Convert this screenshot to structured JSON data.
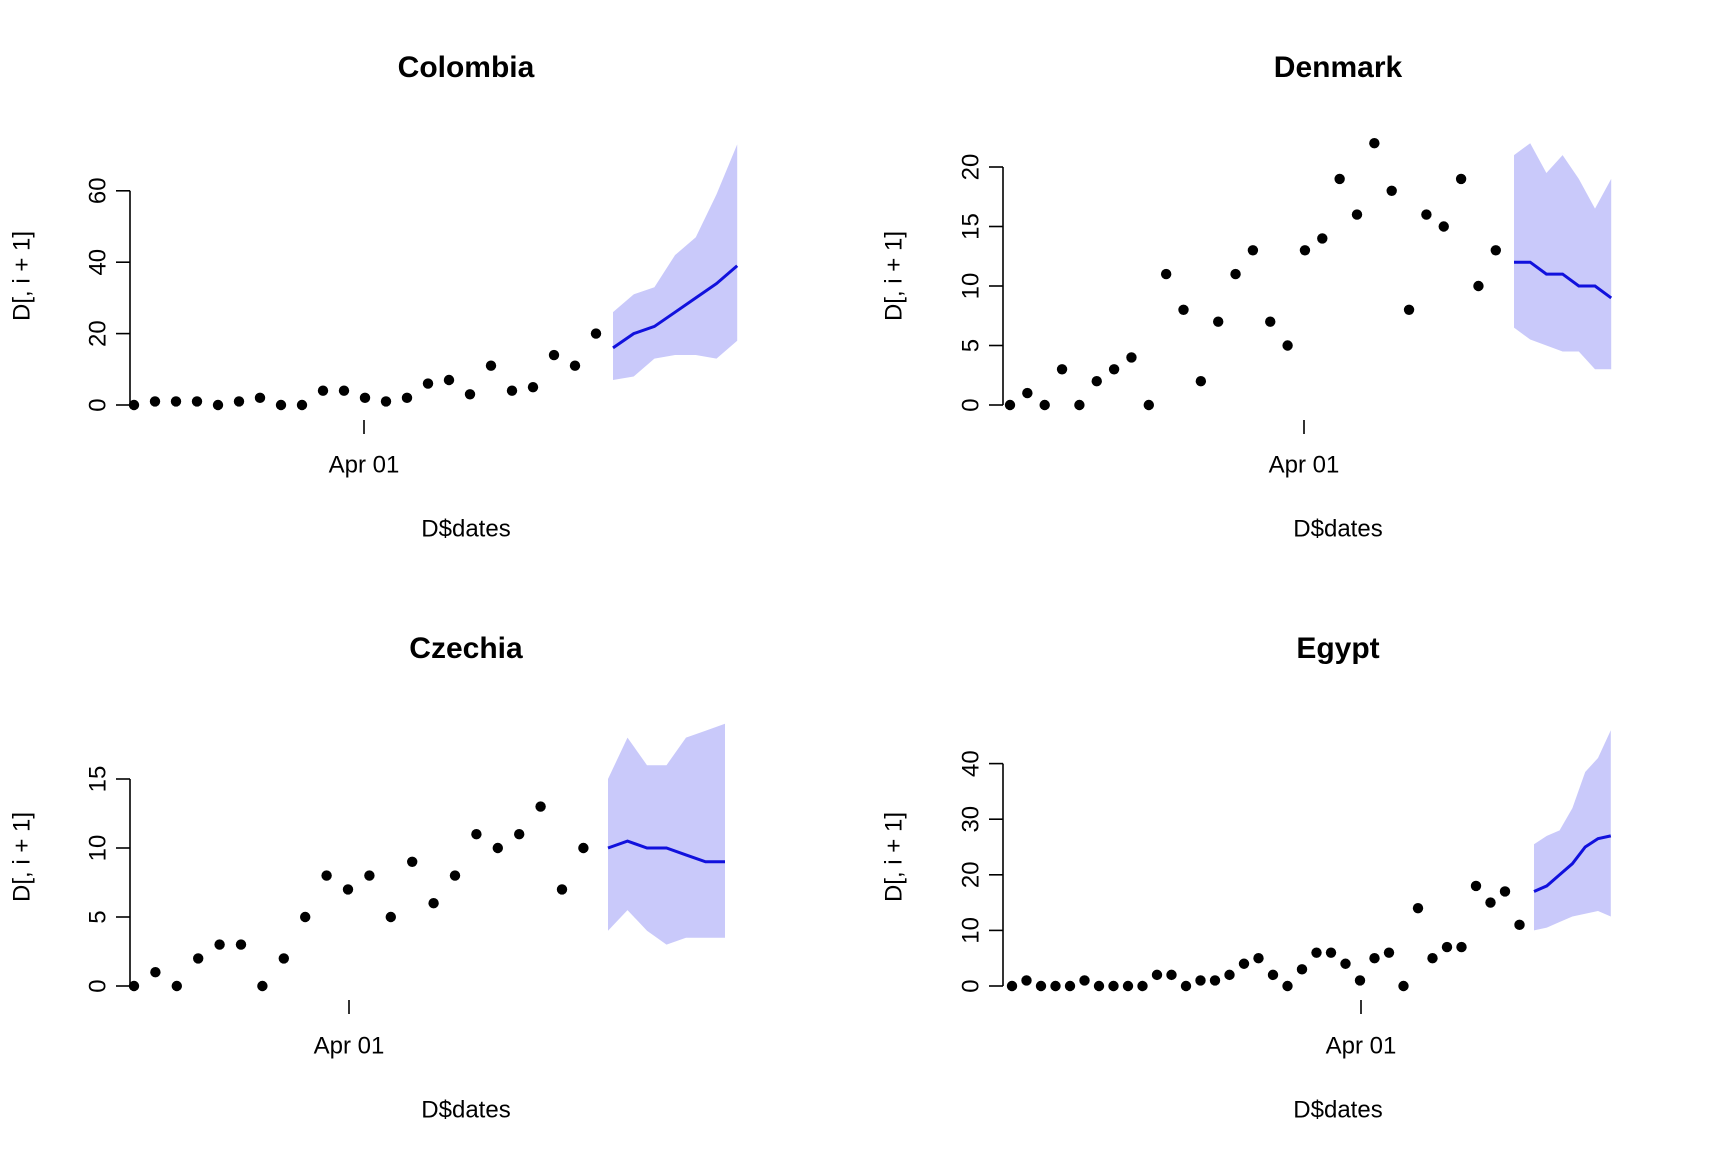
{
  "chart_data": [
    {
      "type": "scatter",
      "title": "Colombia",
      "xlabel": "D$dates",
      "ylabel": "D[, i + 1]",
      "x_tick_labels": [
        "Apr 01"
      ],
      "y_ticks": [
        0,
        20,
        40,
        60
      ],
      "points": [
        0,
        1,
        1,
        1,
        0,
        1,
        2,
        0,
        0,
        4,
        4,
        2,
        1,
        2,
        6,
        7,
        3,
        11,
        4,
        5,
        14,
        11,
        20
      ],
      "forecast": [
        16,
        20,
        22,
        26,
        30,
        34,
        39
      ],
      "forecast_lower": [
        7,
        8,
        13,
        14,
        14,
        13,
        18
      ],
      "forecast_upper": [
        26,
        31,
        33,
        42,
        47,
        59,
        73
      ],
      "colors": {
        "points": "#000000",
        "forecast_line": "#1111dd",
        "forecast_band": "#c9c9fa"
      }
    },
    {
      "type": "scatter",
      "title": "Denmark",
      "xlabel": "D$dates",
      "ylabel": "D[, i + 1]",
      "x_tick_labels": [
        "Apr 01"
      ],
      "y_ticks": [
        0,
        5,
        10,
        15,
        20
      ],
      "points": [
        0,
        1,
        0,
        3,
        0,
        2,
        3,
        4,
        0,
        11,
        8,
        2,
        7,
        11,
        13,
        7,
        5,
        13,
        14,
        19,
        16,
        22,
        18,
        8,
        16,
        15,
        19,
        10,
        13
      ],
      "forecast": [
        12,
        12,
        11,
        11,
        10,
        10,
        9
      ],
      "forecast_lower": [
        6.5,
        5.5,
        5,
        4.5,
        4.5,
        3,
        3
      ],
      "forecast_upper": [
        21,
        22,
        19.5,
        21,
        19,
        16.5,
        19
      ],
      "colors": {
        "points": "#000000",
        "forecast_line": "#1111dd",
        "forecast_band": "#c9c9fa"
      }
    },
    {
      "type": "scatter",
      "title": "Czechia",
      "xlabel": "D$dates",
      "ylabel": "D[, i + 1]",
      "x_tick_labels": [
        "Apr 01"
      ],
      "y_ticks": [
        0,
        5,
        10,
        15
      ],
      "points": [
        0,
        1,
        0,
        2,
        3,
        3,
        0,
        2,
        5,
        8,
        7,
        8,
        5,
        9,
        6,
        8,
        11,
        10,
        11,
        13,
        7,
        10
      ],
      "forecast": [
        10,
        10.5,
        10,
        10,
        9.5,
        9,
        9
      ],
      "forecast_lower": [
        4,
        5.5,
        4,
        3,
        3.5,
        3.5,
        3.5
      ],
      "forecast_upper": [
        15,
        18,
        16,
        16,
        18,
        18.5,
        19
      ],
      "colors": {
        "points": "#000000",
        "forecast_line": "#1111dd",
        "forecast_band": "#c9c9fa"
      }
    },
    {
      "type": "scatter",
      "title": "Egypt",
      "xlabel": "D$dates",
      "ylabel": "D[, i + 1]",
      "x_tick_labels": [
        "Apr 01"
      ],
      "y_ticks": [
        0,
        10,
        20,
        30,
        40
      ],
      "points": [
        0,
        1,
        0,
        0,
        0,
        1,
        0,
        0,
        0,
        0,
        2,
        2,
        0,
        1,
        1,
        2,
        4,
        5,
        2,
        0,
        3,
        6,
        6,
        4,
        1,
        5,
        6,
        0,
        14,
        5,
        7,
        7,
        18,
        15,
        17,
        11
      ],
      "forecast": [
        17,
        18,
        20,
        22,
        25,
        26.5,
        27
      ],
      "forecast_lower": [
        10,
        10.5,
        11.5,
        12.5,
        13,
        13.5,
        12.5
      ],
      "forecast_upper": [
        25.5,
        27,
        28,
        32,
        38.5,
        41,
        46
      ],
      "colors": {
        "points": "#000000",
        "forecast_line": "#1111dd",
        "forecast_band": "#c9c9fa"
      }
    }
  ]
}
